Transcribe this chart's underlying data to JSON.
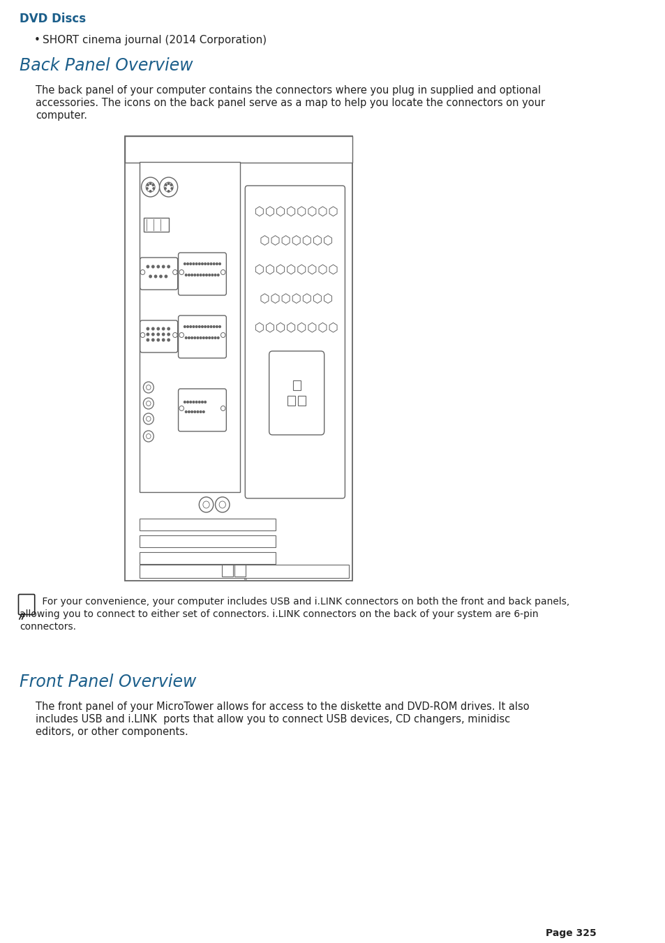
{
  "title_dvd": "DVD Discs",
  "bullet_text": "SHORT cinema journal (2014 Corporation)",
  "heading_back": "Back Panel Overview",
  "body_back_1": "The back panel of your computer contains the connectors where you plug in supplied and optional",
  "body_back_2": "accessories. The icons on the back panel serve as a map to help you locate the connectors on your",
  "body_back_3": "computer.",
  "note_text_1": " For your convenience, your computer includes USB and i.LINK connectors on both the front and back panels,",
  "note_text_2": "allowing you to connect to either set of connectors. i.LINK connectors on the back of your system are 6-pin",
  "note_text_3": "connectors.",
  "heading_front": "Front Panel Overview",
  "body_front_1": "The front panel of your MicroTower allows for access to the diskette and DVD-ROM drives. It also",
  "body_front_2": "includes USB and i.LINK  ports that allow you to connect USB devices, CD changers, minidisc",
  "body_front_3": "editors, or other components.",
  "page_num": "Page 325",
  "heading_color": "#1b5e8a",
  "title_color": "#1b5e8a",
  "text_color": "#222222",
  "bg_color": "#ffffff",
  "line_color": "#666666"
}
